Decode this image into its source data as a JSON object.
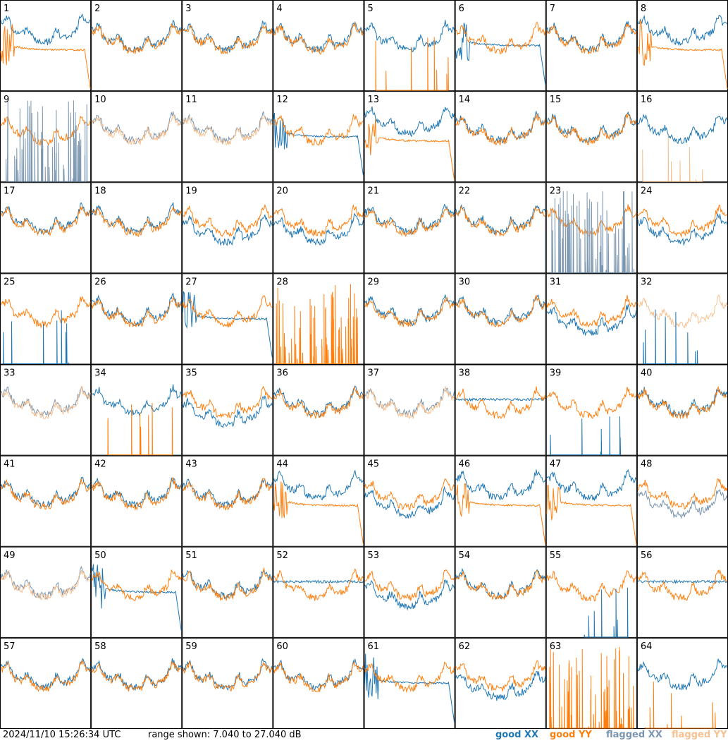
{
  "chart_data": {
    "type": "line",
    "layout": "8x8 small multiples",
    "panels": [
      "1",
      "2",
      "3",
      "4",
      "5",
      "6",
      "7",
      "8",
      "9",
      "10",
      "11",
      "12",
      "13",
      "14",
      "15",
      "16",
      "17",
      "18",
      "19",
      "20",
      "21",
      "22",
      "23",
      "24",
      "25",
      "26",
      "27",
      "28",
      "29",
      "30",
      "31",
      "32",
      "33",
      "34",
      "35",
      "36",
      "37",
      "38",
      "39",
      "40",
      "41",
      "42",
      "43",
      "44",
      "45",
      "46",
      "47",
      "48",
      "49",
      "50",
      "51",
      "52",
      "53",
      "54",
      "55",
      "56",
      "57",
      "58",
      "59",
      "60",
      "61",
      "62",
      "63",
      "64"
    ],
    "ylim": [
      7.04,
      27.04
    ],
    "yunit": "dB",
    "series": [
      {
        "name": "good XX",
        "color": "#1f77b4"
      },
      {
        "name": "good YY",
        "color": "#ff7f0e"
      },
      {
        "name": "flagged XX",
        "color": "#7a96b0"
      },
      {
        "name": "flagged YY",
        "color": "#f8c08f"
      }
    ],
    "panel_styles": {
      "1": [
        "decay",
        "g"
      ],
      "2": [
        "normal",
        "g"
      ],
      "3": [
        "normal",
        "g"
      ],
      "4": [
        "normal",
        "g"
      ],
      "5": [
        "yspikes",
        "g"
      ],
      "6": [
        "xdecay",
        "g"
      ],
      "7": [
        "normal",
        "g"
      ],
      "8": [
        "decay",
        "g"
      ],
      "9": [
        "xspikes",
        "fx"
      ],
      "10": [
        "normal",
        "f"
      ],
      "11": [
        "normal",
        "f"
      ],
      "12": [
        "xdecay",
        "g"
      ],
      "13": [
        "decay",
        "g"
      ],
      "14": [
        "normal",
        "g"
      ],
      "15": [
        "normal",
        "g"
      ],
      "16": [
        "yspikes",
        "fy"
      ],
      "17": [
        "normal",
        "g"
      ],
      "18": [
        "normal",
        "g"
      ],
      "19": [
        "sep",
        "g"
      ],
      "20": [
        "sep",
        "g"
      ],
      "21": [
        "normal",
        "g"
      ],
      "22": [
        "normal",
        "g"
      ],
      "23": [
        "xspikes",
        "fx"
      ],
      "24": [
        "sep",
        "g"
      ],
      "25": [
        "xspikes",
        "g"
      ],
      "26": [
        "normal",
        "g"
      ],
      "27": [
        "xdecay",
        "g"
      ],
      "28": [
        "yonly",
        "g"
      ],
      "29": [
        "normal",
        "g"
      ],
      "30": [
        "normal",
        "g"
      ],
      "31": [
        "sep",
        "g"
      ],
      "32": [
        "xspikes",
        "fy"
      ],
      "33": [
        "normal",
        "f"
      ],
      "34": [
        "yspikes",
        "g"
      ],
      "35": [
        "sep",
        "g"
      ],
      "36": [
        "normal",
        "g"
      ],
      "37": [
        "normal",
        "f"
      ],
      "38": [
        "xflat",
        "g"
      ],
      "39": [
        "xspikes",
        "g"
      ],
      "40": [
        "normal",
        "g"
      ],
      "41": [
        "normal",
        "g"
      ],
      "42": [
        "normal",
        "g"
      ],
      "43": [
        "normal",
        "g"
      ],
      "44": [
        "decay",
        "g"
      ],
      "45": [
        "sep",
        "g"
      ],
      "46": [
        "decay",
        "g"
      ],
      "47": [
        "decay",
        "g"
      ],
      "48": [
        "sep",
        "fx"
      ],
      "49": [
        "normal",
        "f"
      ],
      "50": [
        "xdecay",
        "g"
      ],
      "51": [
        "normal",
        "g"
      ],
      "52": [
        "xflat",
        "g"
      ],
      "53": [
        "sep",
        "g"
      ],
      "54": [
        "normal",
        "g"
      ],
      "55": [
        "xspikes",
        "g"
      ],
      "56": [
        "xflat",
        "g"
      ],
      "57": [
        "normal",
        "g"
      ],
      "58": [
        "normal",
        "g"
      ],
      "59": [
        "normal",
        "g"
      ],
      "60": [
        "normal",
        "g"
      ],
      "61": [
        "xdecay",
        "g"
      ],
      "62": [
        "sep",
        "g"
      ],
      "63": [
        "yonly",
        "g"
      ],
      "64": [
        "yspikes",
        "g"
      ]
    }
  },
  "footer": {
    "timestamp": "2024/11/10 15:26:34 UTC",
    "range_text": "range shown: 7.040 to 27.040 dB",
    "legend": [
      "good XX",
      "good YY",
      "flagged XX",
      "flagged YY"
    ]
  }
}
